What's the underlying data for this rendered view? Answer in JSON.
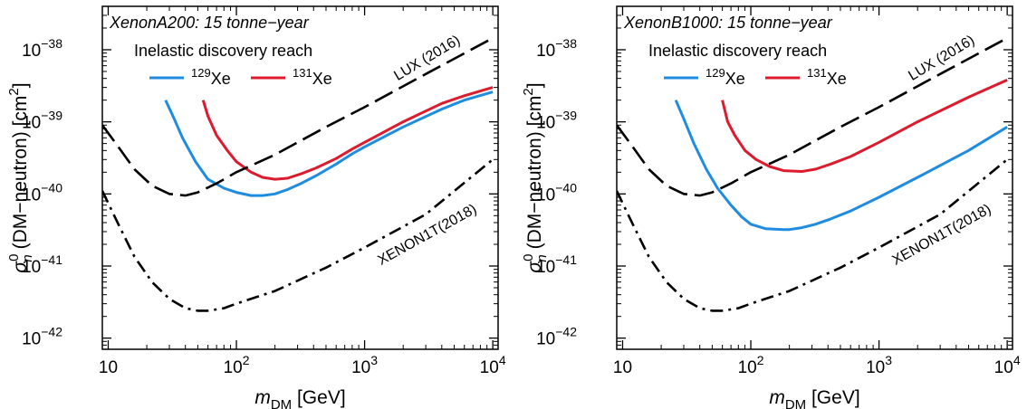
{
  "chart_data": [
    {
      "type": "line",
      "title": "XenonA200: 15 tonne−year",
      "xlabel": {
        "base": "m",
        "sub": "DM",
        "unit": " [GeV]"
      },
      "ylabel": {
        "sym": "σ",
        "sup": "0",
        "sub": "n",
        "rest": " (DM−neutron) [cm",
        "exp": "2",
        "close": "]"
      },
      "x_scale": "log",
      "y_scale": "log",
      "xlim": [
        9,
        11000
      ],
      "ylim": [
        7e-43,
        4e-38
      ],
      "x_ticks": [
        {
          "base": "10",
          "exp": ""
        },
        {
          "base": "10",
          "exp": "2"
        },
        {
          "base": "10",
          "exp": "3"
        },
        {
          "base": "10",
          "exp": "4"
        }
      ],
      "x_tick_values": [
        10,
        100,
        1000,
        10000
      ],
      "y_ticks": [
        {
          "base": "10",
          "exp": "−42"
        },
        {
          "base": "10",
          "exp": "−41"
        },
        {
          "base": "10",
          "exp": "−40"
        },
        {
          "base": "10",
          "exp": "−39"
        },
        {
          "base": "10",
          "exp": "−38"
        }
      ],
      "y_tick_values": [
        1e-42,
        1e-41,
        1e-40,
        1e-39,
        1e-38
      ],
      "grid": false,
      "legend": {
        "title": "Inelastic discovery reach",
        "placement": "top-left",
        "entries": [
          {
            "sup": "129",
            "label": "Xe",
            "color": "#1f8ce0"
          },
          {
            "sup": "131",
            "label": "Xe",
            "color": "#dc1c2e"
          }
        ]
      },
      "series": [
        {
          "name": "129Xe",
          "color": "#1f8ce0",
          "style": "solid",
          "x": [
            28,
            32,
            38,
            48,
            60,
            80,
            100,
            130,
            160,
            200,
            250,
            320,
            420,
            600,
            800,
            1000,
            2000,
            4000,
            6000,
            10000
          ],
          "y": [
            2e-39,
            1.2e-39,
            6e-40,
            2.8e-40,
            1.6e-40,
            1.2e-40,
            1.05e-40,
            9.5e-41,
            9.5e-41,
            1e-40,
            1.15e-40,
            1.4e-40,
            1.8e-40,
            2.6e-40,
            3.6e-40,
            4.5e-40,
            8.5e-40,
            1.5e-39,
            2e-39,
            2.6e-39
          ]
        },
        {
          "name": "131Xe",
          "color": "#dc1c2e",
          "style": "solid",
          "x": [
            55,
            60,
            70,
            85,
            100,
            130,
            160,
            200,
            250,
            320,
            420,
            600,
            800,
            1000,
            2000,
            4000,
            6000,
            10000
          ],
          "y": [
            2e-39,
            1.2e-39,
            6.5e-40,
            4e-40,
            2.8e-40,
            2e-40,
            1.7e-40,
            1.6e-40,
            1.65e-40,
            1.9e-40,
            2.3e-40,
            3.1e-40,
            4.2e-40,
            5.2e-40,
            1e-39,
            1.8e-39,
            2.3e-39,
            3e-39
          ]
        },
        {
          "name": "LUX (2016)",
          "color": "#000000",
          "style": "dashed",
          "x": [
            9,
            12,
            16,
            22,
            30,
            40,
            50,
            70,
            100,
            200,
            500,
            1000,
            3000,
            10000
          ],
          "y": [
            9e-40,
            4.5e-40,
            2.2e-40,
            1.3e-40,
            1e-40,
            9.5e-41,
            1.05e-40,
            1.4e-40,
            2e-40,
            3.5e-40,
            8.5e-40,
            1.6e-39,
            4.6e-39,
            1.45e-38
          ]
        },
        {
          "name": "XENON1T(2018)",
          "color": "#000000",
          "style": "dashdot",
          "x": [
            9,
            12,
            16,
            22,
            30,
            40,
            50,
            60,
            80,
            100,
            200,
            500,
            1000,
            3000,
            10000
          ],
          "y": [
            1.1e-40,
            3.8e-41,
            1.35e-41,
            6e-42,
            3.5e-42,
            2.6e-42,
            2.4e-42,
            2.4e-42,
            2.6e-42,
            3e-42,
            4.5e-42,
            9.5e-42,
            1.8e-41,
            5.2e-41,
            3e-40
          ]
        }
      ],
      "annotations": [
        {
          "text": "LUX (2016)",
          "x": 3200,
          "y": 6.8e-39,
          "angle": -31
        },
        {
          "text": "XENON1T(2018)",
          "x": 3200,
          "y": 2.4e-41,
          "angle": -29
        }
      ]
    },
    {
      "type": "line",
      "title": "XenonB1000: 15 tonne−year",
      "xlabel": {
        "base": "m",
        "sub": "DM",
        "unit": " [GeV]"
      },
      "ylabel": {
        "sym": "σ",
        "sup": "0",
        "sub": "n",
        "rest": " (DM−neutron) [cm",
        "exp": "2",
        "close": "]"
      },
      "x_scale": "log",
      "y_scale": "log",
      "xlim": [
        9,
        11000
      ],
      "ylim": [
        7e-43,
        4e-38
      ],
      "x_ticks": [
        {
          "base": "10",
          "exp": ""
        },
        {
          "base": "10",
          "exp": "2"
        },
        {
          "base": "10",
          "exp": "3"
        },
        {
          "base": "10",
          "exp": "4"
        }
      ],
      "x_tick_values": [
        10,
        100,
        1000,
        10000
      ],
      "y_ticks": [
        {
          "base": "10",
          "exp": "−42"
        },
        {
          "base": "10",
          "exp": "−41"
        },
        {
          "base": "10",
          "exp": "−40"
        },
        {
          "base": "10",
          "exp": "−39"
        },
        {
          "base": "10",
          "exp": "−38"
        }
      ],
      "y_tick_values": [
        1e-42,
        1e-41,
        1e-40,
        1e-39,
        1e-38
      ],
      "grid": false,
      "legend": {
        "title": "Inelastic discovery reach",
        "placement": "top-left",
        "entries": [
          {
            "sup": "129",
            "label": "Xe",
            "color": "#1f8ce0"
          },
          {
            "sup": "131",
            "label": "Xe",
            "color": "#dc1c2e"
          }
        ]
      },
      "series": [
        {
          "name": "129Xe",
          "color": "#1f8ce0",
          "style": "solid",
          "x": [
            26,
            30,
            36,
            45,
            55,
            70,
            85,
            100,
            130,
            180,
            200,
            250,
            320,
            420,
            600,
            1000,
            2000,
            5000,
            10000
          ],
          "y": [
            2e-39,
            1.1e-39,
            5e-40,
            2.2e-40,
            1.2e-40,
            7e-41,
            4.8e-41,
            3.8e-41,
            3.3e-41,
            3.2e-41,
            3.2e-41,
            3.4e-41,
            3.8e-41,
            4.5e-41,
            5.8e-41,
            9e-41,
            1.7e-40,
            4e-40,
            8.5e-40
          ]
        },
        {
          "name": "131Xe",
          "color": "#dc1c2e",
          "style": "solid",
          "x": [
            60,
            66,
            75,
            90,
            110,
            140,
            180,
            250,
            320,
            420,
            600,
            1000,
            2000,
            5000,
            10000
          ],
          "y": [
            2e-39,
            1e-39,
            6.5e-40,
            4e-40,
            3e-40,
            2.4e-40,
            2.1e-40,
            2.05e-40,
            2.2e-40,
            2.6e-40,
            3.3e-40,
            5.2e-40,
            1e-39,
            2.2e-39,
            3.8e-39
          ]
        },
        {
          "name": "LUX (2016)",
          "color": "#000000",
          "style": "dashed",
          "x": [
            9,
            12,
            16,
            22,
            30,
            40,
            50,
            70,
            100,
            200,
            500,
            1000,
            3000,
            10000
          ],
          "y": [
            9e-40,
            4.5e-40,
            2.2e-40,
            1.3e-40,
            1e-40,
            9.5e-41,
            1.05e-40,
            1.4e-40,
            2e-40,
            3.5e-40,
            8.5e-40,
            1.6e-39,
            4.6e-39,
            1.45e-38
          ]
        },
        {
          "name": "XENON1T(2018)",
          "color": "#000000",
          "style": "dashdot",
          "x": [
            9,
            12,
            16,
            22,
            30,
            40,
            50,
            60,
            80,
            100,
            200,
            500,
            1000,
            3000,
            10000
          ],
          "y": [
            1.1e-40,
            3.8e-41,
            1.35e-41,
            6e-42,
            3.5e-42,
            2.6e-42,
            2.4e-42,
            2.4e-42,
            2.6e-42,
            3e-42,
            4.5e-42,
            9.5e-42,
            1.8e-41,
            5.2e-41,
            3e-40
          ]
        }
      ],
      "annotations": [
        {
          "text": "LUX (2016)",
          "x": 3200,
          "y": 6.8e-39,
          "angle": -31
        },
        {
          "text": "XENON1T(2018)",
          "x": 3200,
          "y": 2.4e-41,
          "angle": -29
        }
      ]
    }
  ]
}
